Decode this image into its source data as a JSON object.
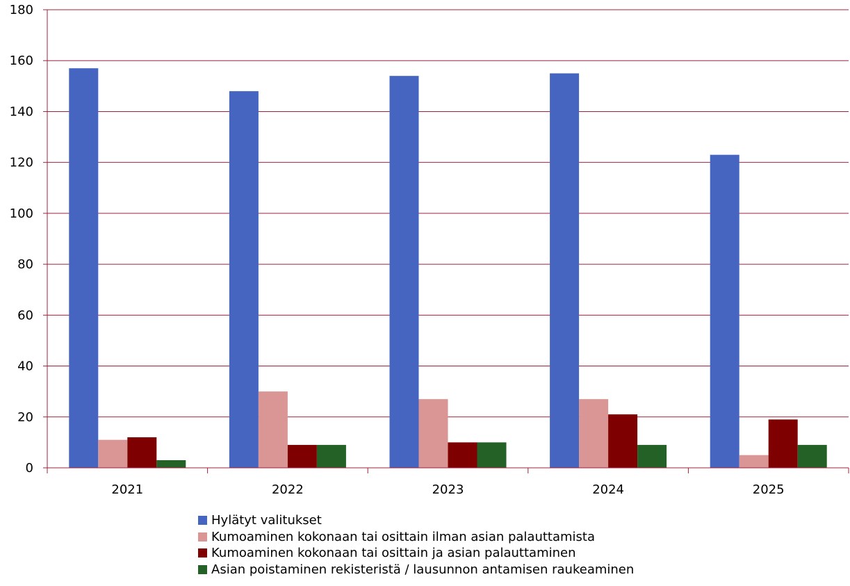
{
  "chart_data": {
    "type": "bar",
    "categories": [
      "2021",
      "2022",
      "2023",
      "2024",
      "2025"
    ],
    "ylim": [
      0,
      180
    ],
    "yticks": [
      0,
      20,
      40,
      60,
      80,
      100,
      120,
      140,
      160,
      180
    ],
    "grid": true,
    "legend_position": "bottom",
    "series": [
      {
        "name": "Hylätyt valitukset",
        "color": "#4565C0",
        "values": [
          157,
          148,
          154,
          155,
          123
        ]
      },
      {
        "name": "Kumoaminen kokonaan tai osittain ilman asian palauttamista",
        "color": "#D99694",
        "values": [
          11,
          30,
          27,
          27,
          5
        ]
      },
      {
        "name": "Kumoaminen kokonaan tai osittain ja asian palauttaminen",
        "color": "#7F0000",
        "values": [
          12,
          9,
          10,
          21,
          19
        ]
      },
      {
        "name": "Asian poistaminen rekisteristä / lausunnon antamisen raukeaminen",
        "color": "#236126",
        "values": [
          3,
          9,
          10,
          9,
          9
        ]
      }
    ],
    "colors": {
      "axis": "#A0203A",
      "grid": "#A0203A"
    }
  }
}
